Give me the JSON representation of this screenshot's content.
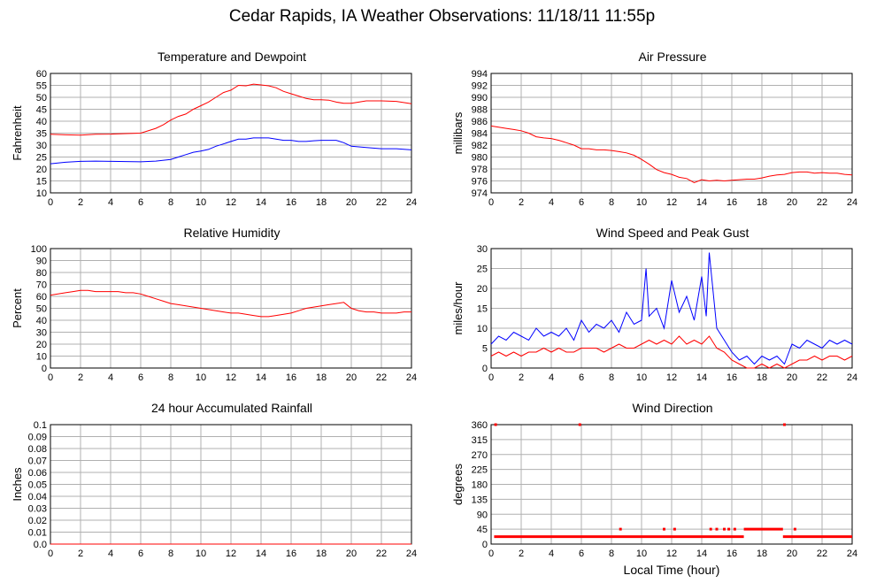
{
  "page": {
    "title": "Cedar Rapids, IA Weather Observations: 11/18/11 11:55p"
  },
  "colors": {
    "red": "#ff0000",
    "blue": "#0000ff",
    "grid": "#b0b0b0"
  },
  "chart_data": [
    {
      "id": "temp",
      "type": "line",
      "title": "Temperature and Dewpoint",
      "xlabel": "",
      "ylabel": "Fahrenheit",
      "xlim": [
        0,
        24
      ],
      "ylim": [
        10,
        60
      ],
      "xticks": [
        0,
        2,
        4,
        6,
        8,
        10,
        12,
        14,
        16,
        18,
        20,
        22,
        24
      ],
      "yticks": [
        10,
        15,
        20,
        25,
        30,
        35,
        40,
        45,
        50,
        55,
        60
      ],
      "grid": true,
      "series": [
        {
          "color": "#ff0000",
          "x": [
            0,
            1,
            2,
            3,
            4,
            5,
            6,
            7,
            7.5,
            8,
            8.5,
            9,
            9.5,
            10,
            10.5,
            11,
            11.5,
            12,
            12.5,
            13,
            13.5,
            14,
            14.5,
            15,
            15.5,
            16,
            16.5,
            17,
            17.5,
            18,
            18.5,
            19,
            19.5,
            20,
            20.5,
            21,
            22,
            23,
            24
          ],
          "y": [
            34.5,
            34.3,
            34.2,
            34.5,
            34.6,
            34.8,
            35,
            37,
            38.5,
            40.5,
            42,
            43,
            45,
            46.5,
            48,
            50,
            52,
            53,
            55,
            54.8,
            55.5,
            55.2,
            54.8,
            54,
            52.5,
            51.5,
            50.5,
            49.5,
            49,
            49,
            48.8,
            48,
            47.5,
            47.5,
            48,
            48.5,
            48.5,
            48.3,
            47.3
          ]
        },
        {
          "color": "#0000ff",
          "x": [
            0,
            1,
            2,
            3,
            4,
            5,
            6,
            7,
            8,
            8.5,
            9,
            9.5,
            10,
            10.5,
            11,
            11.5,
            12,
            12.5,
            13,
            13.5,
            14,
            14.5,
            15,
            15.5,
            16,
            16.5,
            17,
            17.5,
            18,
            18.5,
            19,
            19.5,
            20,
            21,
            22,
            23,
            24
          ],
          "y": [
            22.2,
            22.8,
            23.2,
            23.3,
            23.2,
            23.1,
            23,
            23.3,
            24,
            25,
            26,
            27,
            27.5,
            28.2,
            29.5,
            30.5,
            31.5,
            32.5,
            32.5,
            33,
            33,
            33,
            32.5,
            32,
            32,
            31.5,
            31.5,
            31.8,
            32,
            32,
            32,
            31,
            29.5,
            29,
            28.5,
            28.5,
            28
          ]
        }
      ]
    },
    {
      "id": "pressure",
      "type": "line",
      "title": "Air Pressure",
      "xlabel": "",
      "ylabel": "millibars",
      "xlim": [
        0,
        24
      ],
      "ylim": [
        974,
        994
      ],
      "xticks": [
        0,
        2,
        4,
        6,
        8,
        10,
        12,
        14,
        16,
        18,
        20,
        22,
        24
      ],
      "yticks": [
        974,
        976,
        978,
        980,
        982,
        984,
        986,
        988,
        990,
        992,
        994
      ],
      "grid": true,
      "series": [
        {
          "color": "#ff0000",
          "x": [
            0,
            0.5,
            1,
            1.5,
            2,
            2.5,
            3,
            3.5,
            4,
            4.5,
            5,
            5.5,
            6,
            6.5,
            7,
            7.5,
            8,
            8.5,
            9,
            9.5,
            10,
            10.5,
            11,
            11.5,
            12,
            12.5,
            13,
            13.5,
            14,
            14.5,
            15,
            15.5,
            16,
            16.5,
            17,
            17.5,
            18,
            18.5,
            19,
            19.5,
            20,
            20.5,
            21,
            21.5,
            22,
            22.5,
            23,
            23.5,
            24
          ],
          "y": [
            985.2,
            985,
            984.8,
            984.6,
            984.4,
            984,
            983.4,
            983.2,
            983.1,
            982.8,
            982.4,
            982,
            981.4,
            981.4,
            981.2,
            981.2,
            981.1,
            980.9,
            980.7,
            980.3,
            979.6,
            978.8,
            977.9,
            977.4,
            977.1,
            976.6,
            976.4,
            975.7,
            976.2,
            976,
            976.1,
            976,
            976.1,
            976.2,
            976.3,
            976.3,
            976.5,
            976.8,
            977,
            977.1,
            977.4,
            977.5,
            977.5,
            977.3,
            977.4,
            977.3,
            977.3,
            977.1,
            977
          ]
        }
      ]
    },
    {
      "id": "humidity",
      "type": "line",
      "title": "Relative Humidity",
      "xlabel": "",
      "ylabel": "Percent",
      "xlim": [
        0,
        24
      ],
      "ylim": [
        0,
        100
      ],
      "xticks": [
        0,
        2,
        4,
        6,
        8,
        10,
        12,
        14,
        16,
        18,
        20,
        22,
        24
      ],
      "yticks": [
        0,
        10,
        20,
        30,
        40,
        50,
        60,
        70,
        80,
        90,
        100
      ],
      "grid": true,
      "series": [
        {
          "color": "#ff0000",
          "x": [
            0,
            0.5,
            1,
            1.5,
            2,
            2.5,
            3,
            3.5,
            4,
            4.5,
            5,
            5.5,
            6,
            6.5,
            7,
            7.5,
            8,
            8.5,
            9,
            9.5,
            10,
            10.5,
            11,
            11.5,
            12,
            12.5,
            13,
            13.5,
            14,
            14.5,
            15,
            15.5,
            16,
            16.5,
            17,
            17.5,
            18,
            18.5,
            19,
            19.5,
            20,
            20.5,
            21,
            21.5,
            22,
            22.5,
            23,
            23.5,
            24
          ],
          "y": [
            61,
            62,
            63,
            64,
            65,
            65,
            64,
            64,
            64,
            64,
            63,
            63,
            62,
            60,
            58,
            56,
            54,
            53,
            52,
            51,
            50,
            49,
            48,
            47,
            46,
            46,
            45,
            44,
            43,
            43,
            44,
            45,
            46,
            48,
            50,
            51,
            52,
            53,
            54,
            55,
            50,
            48,
            47,
            47,
            46,
            46,
            46,
            47,
            47
          ]
        }
      ]
    },
    {
      "id": "wind",
      "type": "line",
      "title": "Wind Speed and Peak Gust",
      "xlabel": "",
      "ylabel": "miles/hour",
      "xlim": [
        0,
        24
      ],
      "ylim": [
        0,
        30
      ],
      "xticks": [
        0,
        2,
        4,
        6,
        8,
        10,
        12,
        14,
        16,
        18,
        20,
        22,
        24
      ],
      "yticks": [
        0,
        5,
        10,
        15,
        20,
        25,
        30
      ],
      "grid": true,
      "series": [
        {
          "color": "#0000ff",
          "x": [
            0,
            0.5,
            1,
            1.5,
            2,
            2.5,
            3,
            3.5,
            4,
            4.5,
            5,
            5.5,
            6,
            6.5,
            7,
            7.5,
            8,
            8.5,
            9,
            9.5,
            10,
            10.3,
            10.5,
            11,
            11.5,
            12,
            12.5,
            13,
            13.5,
            14,
            14.3,
            14.5,
            15,
            15.5,
            16,
            16.5,
            17,
            17.5,
            18,
            18.5,
            19,
            19.5,
            20,
            20.5,
            21,
            21.5,
            22,
            22.5,
            23,
            23.5,
            24
          ],
          "y": [
            6,
            8,
            7,
            9,
            8,
            7,
            10,
            8,
            9,
            8,
            10,
            7,
            12,
            9,
            11,
            10,
            12,
            9,
            14,
            11,
            12,
            25,
            13,
            15,
            10,
            22,
            14,
            18,
            12,
            23,
            13,
            29,
            10,
            7,
            4,
            2,
            3,
            1,
            3,
            2,
            3,
            1,
            6,
            5,
            7,
            6,
            5,
            7,
            6,
            7,
            6
          ]
        },
        {
          "color": "#ff0000",
          "x": [
            0,
            0.5,
            1,
            1.5,
            2,
            2.5,
            3,
            3.5,
            4,
            4.5,
            5,
            5.5,
            6,
            6.5,
            7,
            7.5,
            8,
            8.5,
            9,
            9.5,
            10,
            10.5,
            11,
            11.5,
            12,
            12.5,
            13,
            13.5,
            14,
            14.5,
            15,
            15.5,
            16,
            16.5,
            17,
            17.5,
            18,
            18.5,
            19,
            19.5,
            20,
            20.5,
            21,
            21.5,
            22,
            22.5,
            23,
            23.5,
            24
          ],
          "y": [
            3,
            4,
            3,
            4,
            3,
            4,
            4,
            5,
            4,
            5,
            4,
            4,
            5,
            5,
            5,
            4,
            5,
            6,
            5,
            5,
            6,
            7,
            6,
            7,
            6,
            8,
            6,
            7,
            6,
            8,
            5,
            4,
            2,
            1,
            0,
            0,
            1,
            0,
            1,
            0,
            1,
            2,
            2,
            3,
            2,
            3,
            3,
            2,
            3
          ]
        }
      ]
    },
    {
      "id": "rain",
      "type": "line",
      "title": "24 hour Accumulated Rainfall",
      "xlabel": "",
      "ylabel": "Inches",
      "xlim": [
        0,
        24
      ],
      "ylim": [
        0,
        0.1
      ],
      "xticks": [
        0,
        2,
        4,
        6,
        8,
        10,
        12,
        14,
        16,
        18,
        20,
        22,
        24
      ],
      "yticks": [
        0,
        0.01,
        0.02,
        0.03,
        0.04,
        0.05,
        0.06,
        0.07,
        0.08,
        0.09,
        0.1
      ],
      "ytick_labels": [
        "0.0",
        "0.01",
        "0.02",
        "0.03",
        "0.04",
        "0.05",
        "0.06",
        "0.07",
        "0.08",
        "0.09",
        "0.1"
      ],
      "grid": true,
      "series": [
        {
          "color": "#ff0000",
          "x": [
            0,
            24
          ],
          "y": [
            0,
            0
          ]
        }
      ]
    },
    {
      "id": "direction",
      "type": "scatter",
      "title": "Wind Direction",
      "xlabel": "Local Time (hour)",
      "ylabel": "degrees",
      "xlim": [
        0,
        24
      ],
      "ylim": [
        0,
        360
      ],
      "xticks": [
        0,
        2,
        4,
        6,
        8,
        10,
        12,
        14,
        16,
        18,
        20,
        22,
        24
      ],
      "yticks": [
        0,
        45,
        90,
        135,
        180,
        225,
        270,
        315,
        360
      ],
      "grid": true,
      "segments": [
        {
          "color": "#ff0000",
          "x0": 0.2,
          "x1": 16.8,
          "y": 22.5
        },
        {
          "color": "#ff0000",
          "x0": 19.4,
          "x1": 24,
          "y": 22.5
        },
        {
          "color": "#ff0000",
          "x0": 16.8,
          "x1": 19.4,
          "y": 45
        }
      ],
      "points": [
        {
          "x": 0.3,
          "y": 360
        },
        {
          "x": 5.9,
          "y": 360
        },
        {
          "x": 19.5,
          "y": 360
        },
        {
          "x": 8.6,
          "y": 45
        },
        {
          "x": 11.5,
          "y": 45
        },
        {
          "x": 12.2,
          "y": 45
        },
        {
          "x": 14.6,
          "y": 45
        },
        {
          "x": 15.0,
          "y": 45
        },
        {
          "x": 15.5,
          "y": 45
        },
        {
          "x": 15.8,
          "y": 45
        },
        {
          "x": 16.2,
          "y": 45
        },
        {
          "x": 20.2,
          "y": 45
        }
      ],
      "point_color": "#ff0000"
    }
  ]
}
